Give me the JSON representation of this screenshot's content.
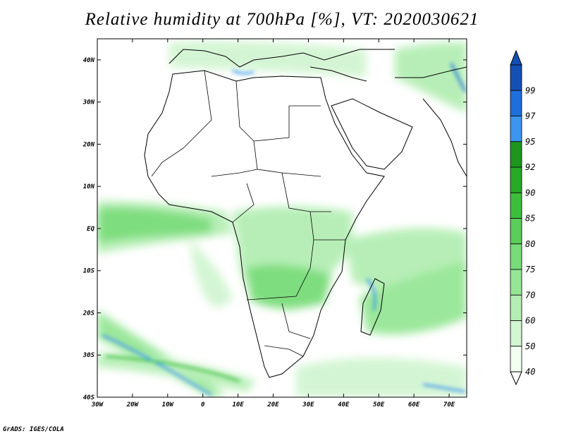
{
  "title": "Relative humidity at 700hPa [%], VT: 2020030621",
  "credit": "GrADS: IGES/COLA",
  "axes": {
    "lat_labels": [
      "40N",
      "30N",
      "20N",
      "10N",
      "EQ",
      "10S",
      "20S",
      "30S",
      "40S"
    ],
    "lat_values": [
      40,
      30,
      20,
      10,
      0,
      -10,
      -20,
      -30,
      -40
    ],
    "lon_labels": [
      "30W",
      "20W",
      "10W",
      "0",
      "10E",
      "20E",
      "30E",
      "40E",
      "50E",
      "60E",
      "70E"
    ],
    "lon_values": [
      -30,
      -20,
      -10,
      0,
      10,
      20,
      30,
      40,
      50,
      60,
      70
    ],
    "lon_range": [
      -30,
      75
    ],
    "lat_range": [
      -40,
      45
    ]
  },
  "colorbar": {
    "levels": [
      "40",
      "50",
      "60",
      "70",
      "75",
      "80",
      "85",
      "90",
      "92",
      "95",
      "97",
      "99"
    ],
    "colors": [
      "#f0fff0",
      "#d2f5d2",
      "#b4eeb4",
      "#96e696",
      "#78dc78",
      "#5acd5a",
      "#3cbe3c",
      "#28aa28",
      "#1e961e",
      "#3c96f0",
      "#1e6edc",
      "#1450b4"
    ],
    "under_color": "#ffffff",
    "over_color": "#1450b4"
  }
}
